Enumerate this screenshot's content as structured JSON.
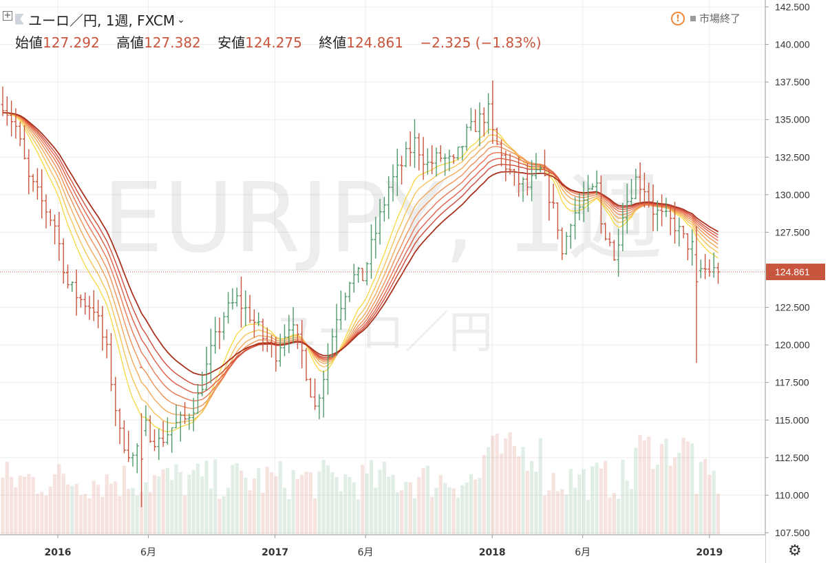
{
  "header": {
    "symbol": "ユーロ／円, 1週, FXCM",
    "ohlc": {
      "open_label": "始値",
      "open": "127.292",
      "high_label": "高値",
      "high": "127.382",
      "low_label": "安値",
      "low": "124.275",
      "close_label": "終値",
      "close": "124.861",
      "change": "−2.325 (−1.83%)"
    },
    "market_status": "市場終了"
  },
  "watermark": {
    "main": "EURJPY, 1週",
    "sub": "ユーロ／円"
  },
  "colors": {
    "up": "#4f9a6a",
    "down": "#c8553d",
    "price_badge": "#c8553d",
    "grid": "#ececec"
  },
  "icons": {
    "plus": "plus-box-icon",
    "flag": "flag-icon",
    "warning": "warning-icon",
    "settings": "gear-icon"
  },
  "chart_data": {
    "type": "ohlc",
    "instrument": "EURJPY",
    "interval": "1週",
    "ylim": [
      107.5,
      142.5
    ],
    "y_ticks": [
      "107.500",
      "110.000",
      "112.500",
      "115.000",
      "117.500",
      "120.000",
      "122.500",
      "125.000",
      "127.500",
      "130.000",
      "132.500",
      "135.000",
      "137.500",
      "140.000",
      "142.500"
    ],
    "x_ticks": [
      {
        "label": "2016",
        "month": 0
      },
      {
        "label": "6月",
        "month": 5
      },
      {
        "label": "2017",
        "month": 12
      },
      {
        "label": "6月",
        "month": 17
      },
      {
        "label": "2018",
        "month": 24
      },
      {
        "label": "6月",
        "month": 29
      },
      {
        "label": "2019",
        "month": 36
      }
    ],
    "last_price": 124.861,
    "last_price_label": "124.861",
    "close_anchors": [
      [
        0,
        136.2
      ],
      [
        3,
        134.5
      ],
      [
        6,
        131.0
      ],
      [
        9,
        129.5
      ],
      [
        12,
        128.0
      ],
      [
        15,
        124.0
      ],
      [
        18,
        123.0
      ],
      [
        21,
        122.5
      ],
      [
        24,
        119.5
      ],
      [
        27,
        114.0
      ],
      [
        30,
        112.5
      ],
      [
        33,
        114.5
      ],
      [
        36,
        113.5
      ],
      [
        39,
        114.5
      ],
      [
        42,
        115.0
      ],
      [
        45,
        116.5
      ],
      [
        48,
        119.5
      ],
      [
        51,
        122.0
      ],
      [
        54,
        123.0
      ],
      [
        57,
        122.0
      ],
      [
        60,
        120.5
      ],
      [
        63,
        119.5
      ],
      [
        66,
        121.5
      ],
      [
        69,
        119.5
      ],
      [
        71,
        117.0
      ],
      [
        72,
        115.8
      ],
      [
        74,
        118.0
      ],
      [
        77,
        122.0
      ],
      [
        80,
        124.5
      ],
      [
        83,
        124.5
      ],
      [
        86,
        127.5
      ],
      [
        89,
        130.5
      ],
      [
        92,
        132.0
      ],
      [
        95,
        133.5
      ],
      [
        98,
        132.0
      ],
      [
        101,
        132.5
      ],
      [
        104,
        132.0
      ],
      [
        107,
        134.0
      ],
      [
        110,
        135.0
      ],
      [
        112,
        135.5
      ],
      [
        113,
        134.0
      ],
      [
        115,
        132.5
      ],
      [
        118,
        131.0
      ],
      [
        121,
        130.5
      ],
      [
        124,
        131.5
      ],
      [
        126,
        130.0
      ],
      [
        128,
        128.0
      ],
      [
        129,
        126.0
      ],
      [
        131,
        128.5
      ],
      [
        134,
        129.5
      ],
      [
        137,
        130.5
      ],
      [
        138,
        128.0
      ],
      [
        140,
        127.0
      ],
      [
        141,
        125.5
      ],
      [
        143,
        129.0
      ],
      [
        146,
        131.0
      ],
      [
        148,
        130.5
      ],
      [
        150,
        129.0
      ],
      [
        152,
        128.5
      ],
      [
        155,
        128.0
      ],
      [
        157,
        127.0
      ],
      [
        159,
        126.5
      ],
      [
        160,
        124.5
      ],
      [
        161,
        125.0
      ],
      [
        163,
        125.0
      ],
      [
        165,
        124.8
      ]
    ]
  }
}
